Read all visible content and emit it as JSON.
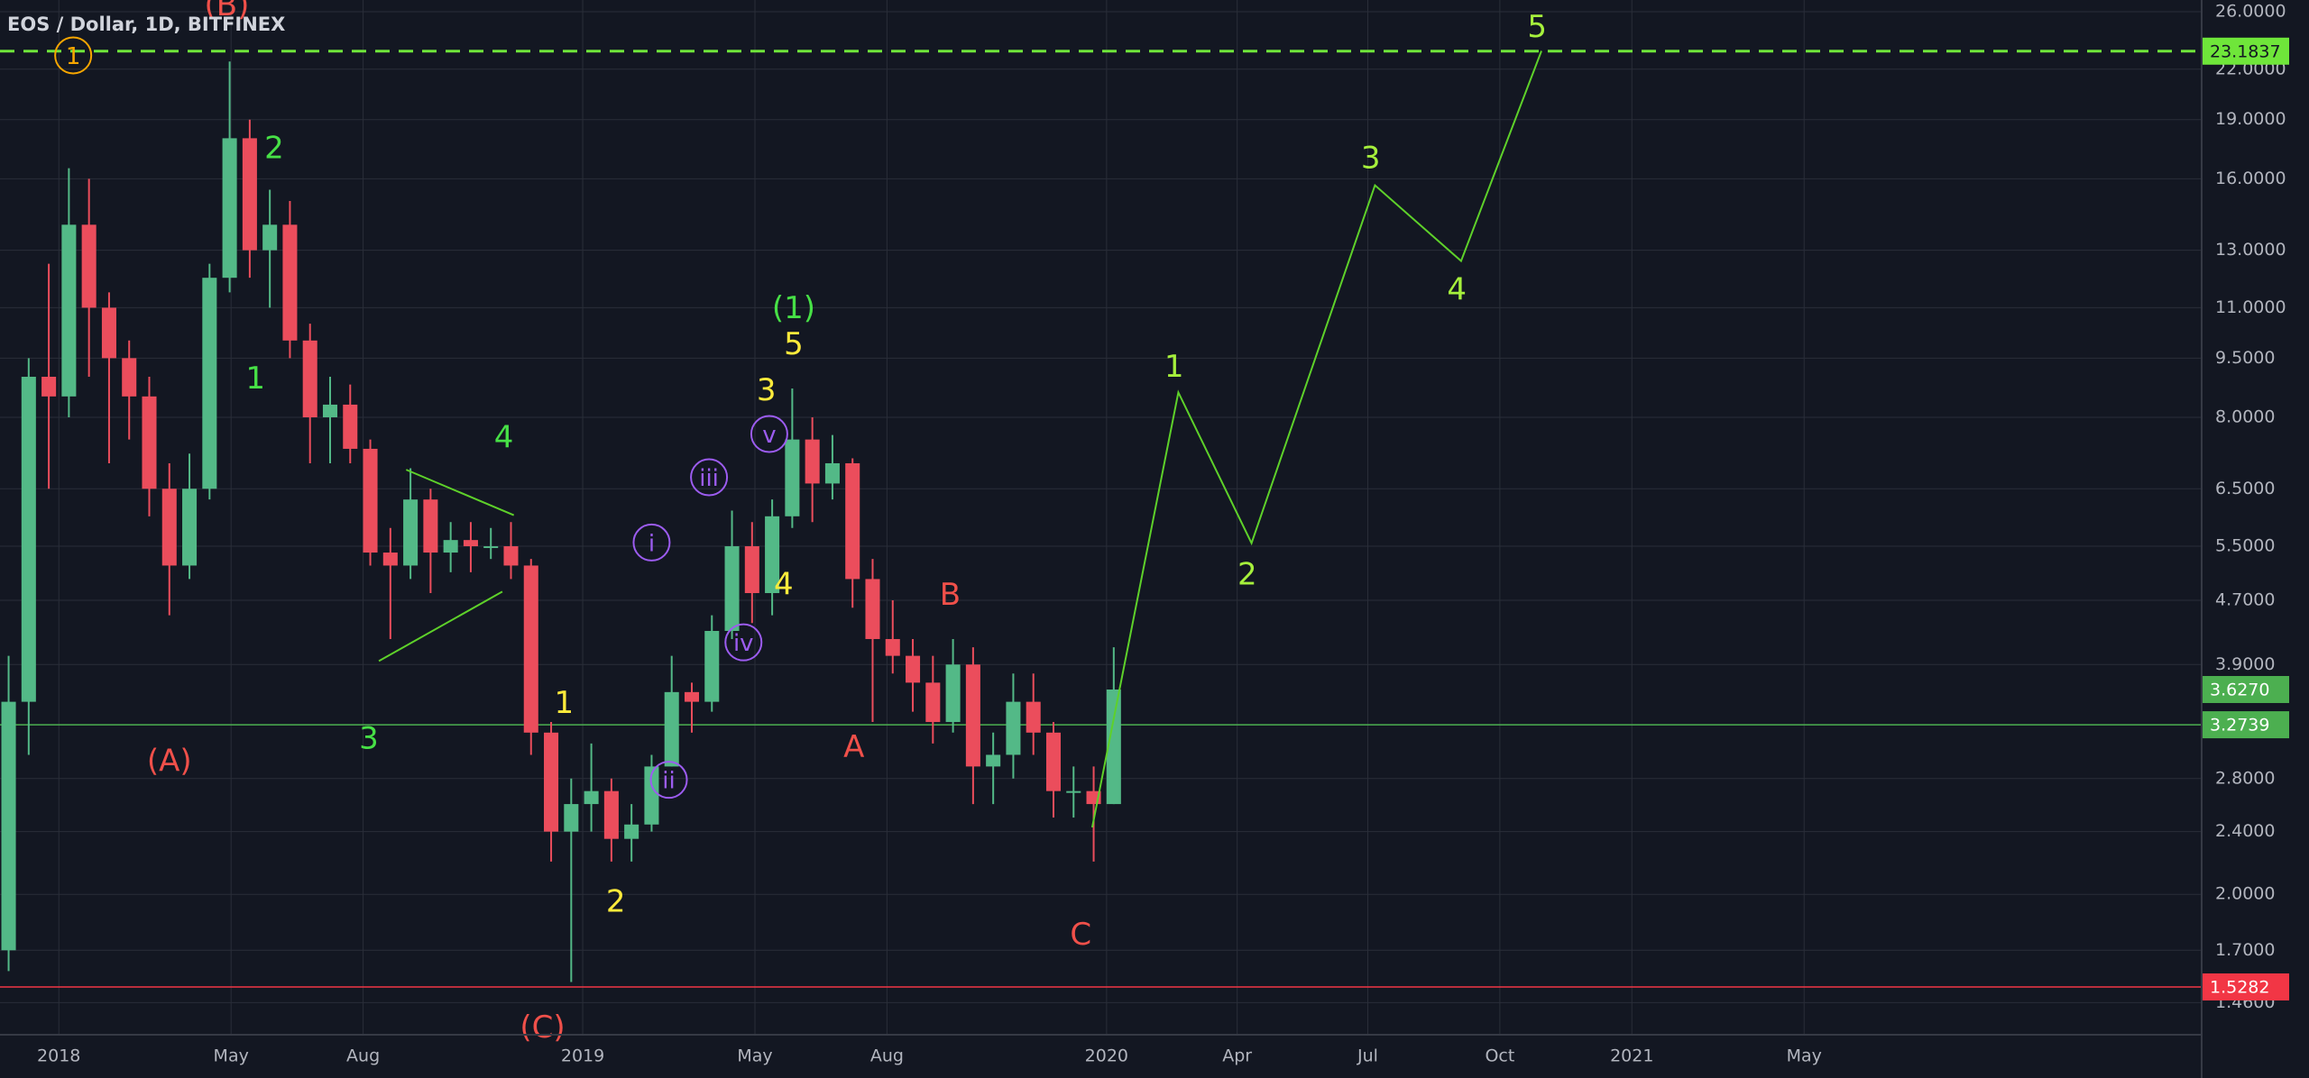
{
  "chart_data": {
    "type": "candlestick",
    "title": "EOS / Dollar, 1D, BITFINEX",
    "log_scale": true,
    "grid": true,
    "up_color": "#53b987",
    "down_color": "#eb4d5c",
    "xlim": [
      "2017-11-21",
      "2022-02-02"
    ],
    "ylim": [
      1.33,
      26.9
    ],
    "xticks": [
      {
        "value": "2018-01-01",
        "label": "2018"
      },
      {
        "value": "2018-05-01",
        "label": "May"
      },
      {
        "value": "2018-08-01",
        "label": "Aug"
      },
      {
        "value": "2019-01-01",
        "label": "2019"
      },
      {
        "value": "2019-05-01",
        "label": "May"
      },
      {
        "value": "2019-08-01",
        "label": "Aug"
      },
      {
        "value": "2020-01-01",
        "label": "2020"
      },
      {
        "value": "2020-04-01",
        "label": "Apr"
      },
      {
        "value": "2020-07-01",
        "label": "Jul"
      },
      {
        "value": "2020-10-01",
        "label": "Oct"
      },
      {
        "value": "2021-01-01",
        "label": "2021"
      },
      {
        "value": "2021-05-01",
        "label": "May"
      }
    ],
    "yticks": [
      {
        "value": 26,
        "label": "26.0000"
      },
      {
        "value": 22,
        "label": "22.0000"
      },
      {
        "value": 19,
        "label": "19.0000"
      },
      {
        "value": 16,
        "label": "16.0000"
      },
      {
        "value": 13,
        "label": "13.0000"
      },
      {
        "value": 11,
        "label": "11.0000"
      },
      {
        "value": 9.5,
        "label": "9.5000"
      },
      {
        "value": 8,
        "label": "8.0000"
      },
      {
        "value": 6.5,
        "label": "6.5000"
      },
      {
        "value": 5.5,
        "label": "5.5000"
      },
      {
        "value": 4.7,
        "label": "4.7000"
      },
      {
        "value": 3.9,
        "label": "3.9000"
      },
      {
        "value": 2.8,
        "label": "2.8000"
      },
      {
        "value": 2.4,
        "label": "2.4000"
      },
      {
        "value": 2,
        "label": "2.0000"
      },
      {
        "value": 1.7,
        "label": "1.7000"
      },
      {
        "value": 1.46,
        "label": "1.4600"
      }
    ],
    "candles": {
      "dates": [
        "2017-11-20",
        "2017-12-04",
        "2017-12-18",
        "2018-01-01",
        "2018-01-15",
        "2018-01-29",
        "2018-02-12",
        "2018-02-26",
        "2018-03-12",
        "2018-03-26",
        "2018-04-09",
        "2018-04-23",
        "2018-05-07",
        "2018-05-21",
        "2018-06-04",
        "2018-06-18",
        "2018-07-02",
        "2018-07-16",
        "2018-07-30",
        "2018-08-13",
        "2018-08-27",
        "2018-09-10",
        "2018-09-24",
        "2018-10-08",
        "2018-10-22",
        "2018-11-05",
        "2018-11-19",
        "2018-12-03",
        "2018-12-17",
        "2018-12-31",
        "2019-01-14",
        "2019-01-28",
        "2019-02-11",
        "2019-02-25",
        "2019-03-11",
        "2019-03-25",
        "2019-04-08",
        "2019-04-22",
        "2019-05-06",
        "2019-05-20",
        "2019-06-03",
        "2019-06-17",
        "2019-07-01",
        "2019-07-15",
        "2019-07-29",
        "2019-08-12",
        "2019-08-26",
        "2019-09-09",
        "2019-09-23",
        "2019-10-07",
        "2019-10-21",
        "2019-11-04",
        "2019-11-18",
        "2019-12-02",
        "2019-12-16",
        "2019-12-30"
      ],
      "open": [
        1.7,
        3.5,
        9.0,
        8.5,
        14,
        11,
        9.5,
        8.5,
        6.5,
        5.2,
        6.5,
        12,
        18,
        13,
        14,
        10,
        8,
        8.3,
        7.3,
        5.4,
        5.2,
        6.3,
        5.4,
        5.6,
        5.5,
        5.5,
        5.2,
        3.2,
        2.4,
        2.6,
        2.7,
        2.35,
        2.45,
        2.9,
        3.6,
        3.5,
        4.3,
        5.5,
        4.8,
        6.0,
        7.5,
        6.6,
        7.0,
        5.0,
        4.2,
        4.0,
        3.7,
        3.3,
        3.9,
        2.9,
        3.0,
        3.5,
        3.2,
        2.7,
        2.7,
        2.6
      ],
      "high": [
        4.0,
        9.5,
        12.5,
        16.5,
        16,
        11.5,
        10,
        9,
        7,
        7.2,
        12.5,
        22.5,
        19,
        15.5,
        15,
        10.5,
        9,
        8.8,
        7.5,
        5.8,
        6.9,
        6.5,
        5.9,
        5.9,
        5.8,
        5.9,
        5.3,
        3.3,
        2.8,
        3.1,
        2.8,
        2.6,
        3.0,
        4.0,
        3.7,
        4.5,
        6.1,
        5.9,
        6.3,
        8.7,
        8.0,
        7.6,
        7.1,
        5.3,
        4.7,
        4.2,
        4.0,
        4.2,
        4.1,
        3.2,
        3.8,
        3.8,
        3.3,
        2.9,
        2.9,
        4.1
      ],
      "low": [
        1.6,
        3.0,
        6.5,
        8.0,
        9,
        7,
        7.5,
        6,
        4.5,
        5.0,
        6.3,
        11.5,
        12,
        11,
        9.5,
        7,
        7,
        7,
        5.2,
        4.2,
        5.0,
        4.8,
        5.1,
        5.1,
        5.3,
        5.0,
        3.0,
        2.2,
        1.55,
        2.4,
        2.2,
        2.2,
        2.4,
        2.9,
        3.2,
        3.4,
        4.2,
        4.4,
        4.5,
        5.8,
        5.9,
        6.3,
        4.6,
        3.3,
        3.8,
        3.4,
        3.1,
        3.2,
        2.6,
        2.6,
        2.8,
        3.0,
        2.5,
        2.5,
        2.2,
        2.6
      ],
      "close": [
        3.5,
        9.0,
        8.5,
        14,
        11,
        9.5,
        8.5,
        6.5,
        5.2,
        6.5,
        12,
        18,
        13,
        14,
        10,
        8,
        8.3,
        7.3,
        5.4,
        5.2,
        6.3,
        5.4,
        5.6,
        5.5,
        5.5,
        5.2,
        3.2,
        2.4,
        2.6,
        2.7,
        2.35,
        2.45,
        2.9,
        3.6,
        3.5,
        4.3,
        5.5,
        4.8,
        6.0,
        7.5,
        6.6,
        7.0,
        5.0,
        4.2,
        4.0,
        3.7,
        3.3,
        3.9,
        2.9,
        3.0,
        3.5,
        3.2,
        2.7,
        2.7,
        2.6,
        3.627
      ]
    },
    "hlines": [
      {
        "price": 23.1837,
        "label": "23.1837",
        "color": "#6fe63a",
        "text_color": "#131722",
        "dashed": true
      },
      {
        "price": 3.2739,
        "label": "3.2739",
        "color": "#4caf50",
        "text_color": "#ffffff",
        "dashed": false
      },
      {
        "price": 1.5282,
        "label": "1.5282",
        "color": "#f23645",
        "text_color": "#ffffff",
        "dashed": false
      }
    ],
    "last_price": {
      "price": 3.627,
      "label": "3.6270",
      "color": "#4caf50",
      "text_color": "#ffffff"
    },
    "drawings": [
      {
        "color": "#5ed12a",
        "points": [
          {
            "date": "2018-08-31",
            "price": 6.87
          },
          {
            "date": "2018-11-14",
            "price": 6.02
          }
        ]
      },
      {
        "color": "#5ed12a",
        "points": [
          {
            "date": "2018-08-12",
            "price": 3.94
          },
          {
            "date": "2018-11-06",
            "price": 4.82
          }
        ]
      },
      {
        "color": "#5ed12a",
        "points": [
          {
            "date": "2019-12-22",
            "price": 2.43
          },
          {
            "date": "2020-02-20",
            "price": 8.6
          },
          {
            "date": "2020-04-11",
            "price": 5.55
          },
          {
            "date": "2020-07-06",
            "price": 15.7
          },
          {
            "date": "2020-09-04",
            "price": 12.6
          },
          {
            "date": "2020-10-30",
            "price": 23.2
          }
        ]
      }
    ],
    "annotations": [
      {
        "text": "(B)",
        "color": "#f0504a",
        "date": "2018-04-28",
        "price": 26.5,
        "circled": false
      },
      {
        "text": "1",
        "color": "#f7a600",
        "date": "2018-01-11",
        "price": 22.9,
        "circled": true
      },
      {
        "text": "2",
        "color": "#47e046",
        "date": "2018-05-31",
        "price": 17.5,
        "circled": false
      },
      {
        "text": "1",
        "color": "#47e046",
        "date": "2018-05-18",
        "price": 8.96,
        "circled": false
      },
      {
        "text": "(A)",
        "color": "#f0504a",
        "date": "2018-03-19",
        "price": 2.95,
        "circled": false
      },
      {
        "text": "4",
        "color": "#47e046",
        "date": "2018-11-07",
        "price": 7.55,
        "circled": false
      },
      {
        "text": "3",
        "color": "#47e046",
        "date": "2018-08-05",
        "price": 3.15,
        "circled": false
      },
      {
        "text": "1",
        "color": "#ffeb3b",
        "date": "2018-12-19",
        "price": 3.49,
        "circled": false
      },
      {
        "text": "2",
        "color": "#ffeb3b",
        "date": "2019-01-24",
        "price": 1.96,
        "circled": false
      },
      {
        "text": "(C)",
        "color": "#f0504a",
        "date": "2018-12-04",
        "price": 1.36,
        "circled": false
      },
      {
        "text": "i",
        "color": "#9c5cf0",
        "date": "2019-02-18",
        "price": 5.56,
        "circled": true
      },
      {
        "text": "ii",
        "color": "#9c5cf0",
        "date": "2019-03-02",
        "price": 2.79,
        "circled": true
      },
      {
        "text": "iii",
        "color": "#9c5cf0",
        "date": "2019-03-30",
        "price": 6.72,
        "circled": true
      },
      {
        "text": "iv",
        "color": "#9c5cf0",
        "date": "2019-04-23",
        "price": 4.16,
        "circled": true
      },
      {
        "text": "v",
        "color": "#9c5cf0",
        "date": "2019-05-11",
        "price": 7.62,
        "circled": true
      },
      {
        "text": "(1)",
        "color": "#47e046",
        "date": "2019-05-28",
        "price": 11.0,
        "circled": false
      },
      {
        "text": "5",
        "color": "#ffeb3b",
        "date": "2019-05-28",
        "price": 9.9,
        "circled": false
      },
      {
        "text": "3",
        "color": "#ffeb3b",
        "date": "2019-05-09",
        "price": 8.66,
        "circled": false
      },
      {
        "text": "4",
        "color": "#ffeb3b",
        "date": "2019-05-21",
        "price": 4.93,
        "circled": false
      },
      {
        "text": "A",
        "color": "#f0504a",
        "date": "2019-07-09",
        "price": 3.07,
        "circled": false
      },
      {
        "text": "B",
        "color": "#f0504a",
        "date": "2019-09-14",
        "price": 4.78,
        "circled": false
      },
      {
        "text": "C",
        "color": "#f0504a",
        "date": "2019-12-14",
        "price": 1.78,
        "circled": false
      },
      {
        "text": "1",
        "color": "#a6f03c",
        "date": "2020-02-17",
        "price": 9.27,
        "circled": false
      },
      {
        "text": "2",
        "color": "#a6f03c",
        "date": "2020-04-08",
        "price": 5.07,
        "circled": false
      },
      {
        "text": "3",
        "color": "#a6f03c",
        "date": "2020-07-03",
        "price": 17.0,
        "circled": false
      },
      {
        "text": "4",
        "color": "#a6f03c",
        "date": "2020-09-01",
        "price": 11.6,
        "circled": false
      },
      {
        "text": "5",
        "color": "#a6f03c",
        "date": "2020-10-27",
        "price": 24.9,
        "circled": false
      }
    ]
  }
}
